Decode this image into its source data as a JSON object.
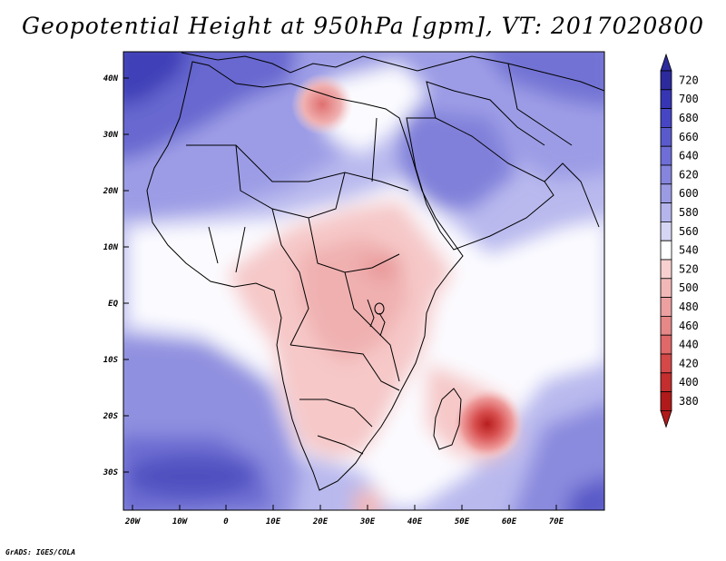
{
  "title": "Geopotential Height at 950hPa [gpm], VT: 2017020800",
  "credit": "GrADS: IGES/COLA",
  "map": {
    "lat_labels": [
      "40N",
      "30N",
      "20N",
      "10N",
      "EQ",
      "10S",
      "20S",
      "30S"
    ],
    "lon_labels": [
      "20W",
      "10W",
      "0",
      "10E",
      "20E",
      "30E",
      "40E",
      "50E",
      "60E",
      "70E"
    ]
  },
  "colorbar": {
    "levels": [
      "720",
      "700",
      "680",
      "660",
      "640",
      "620",
      "600",
      "580",
      "560",
      "540",
      "520",
      "500",
      "480",
      "460",
      "440",
      "420",
      "400",
      "380"
    ],
    "colors": [
      "#2c2a9c",
      "#3636b4",
      "#4646c4",
      "#5a5acc",
      "#6e6ed6",
      "#8585dd",
      "#9b9be4",
      "#b5b5ec",
      "#d6d6f4",
      "#ffffff",
      "#f8d0d0",
      "#f2b8b8",
      "#eca0a0",
      "#e68888",
      "#e06868",
      "#d44848",
      "#c42e2e",
      "#b01a1a"
    ]
  }
}
